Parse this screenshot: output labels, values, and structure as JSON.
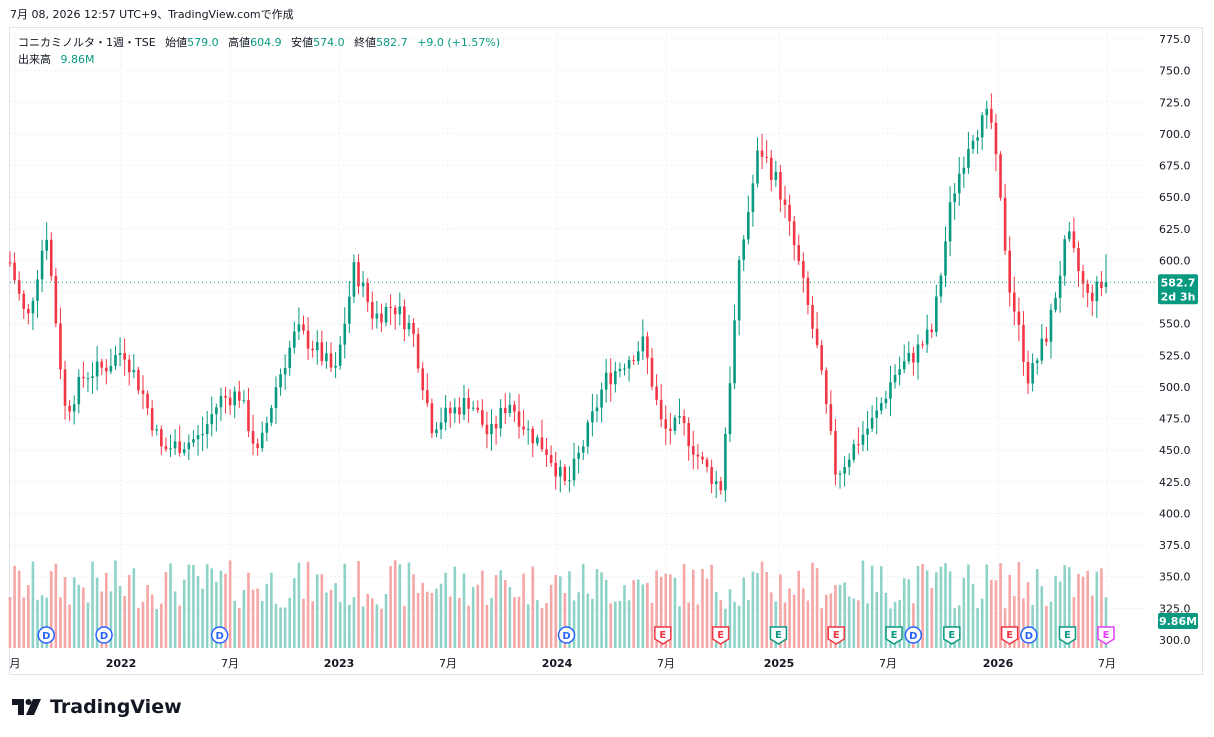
{
  "header": {
    "timestamp": "7月 08, 2026 12:57 UTC+9、TradingView.comで作成"
  },
  "legend": {
    "symbol": "コニカミノルタ・1週・TSE",
    "open_label": "始値",
    "open": "579.0",
    "high_label": "高値",
    "high": "604.9",
    "low_label": "安値",
    "low": "574.0",
    "close_label": "終値",
    "close": "582.7",
    "change": "+9.0 (+1.57%)",
    "volume_label": "出来高",
    "volume": "9.86M"
  },
  "price_badge": {
    "price": "582.7",
    "countdown": "2d 3h"
  },
  "volume_badge": "9.86M",
  "brand": "TradingView",
  "colors": {
    "up": "#089981",
    "down": "#f23645",
    "up_volume": "#8fd3c8",
    "down_volume": "#f5a6a6",
    "grid": "#eef0f4"
  },
  "chart_data": {
    "type": "candlestick",
    "symbol": "コニカミノルタ",
    "interval": "1週",
    "exchange": "TSE",
    "y_axis_ticks": [
      "775.0",
      "750.0",
      "725.0",
      "700.0",
      "675.0",
      "650.0",
      "625.0",
      "600.0",
      "575.0",
      "550.0",
      "525.0",
      "500.0",
      "475.0",
      "450.0",
      "425.0",
      "400.0",
      "375.0",
      "350.0",
      "325.0",
      "300.0"
    ],
    "ylim": [
      300,
      775
    ],
    "x_axis_labels": [
      "月",
      "2022",
      "7月",
      "2023",
      "7月",
      "2024",
      "7月",
      "2025",
      "7月",
      "2026",
      "7月"
    ],
    "last": {
      "open": 579.0,
      "high": 604.9,
      "low": 574.0,
      "close": 582.7,
      "change": 9.0,
      "change_pct": 1.57,
      "volume": "9.86M"
    },
    "close_path_approx": [
      {
        "date": "2021-10",
        "close": 605
      },
      {
        "date": "2021-11",
        "close": 550
      },
      {
        "date": "2021-12",
        "close": 625
      },
      {
        "date": "2022-01",
        "close": 480
      },
      {
        "date": "2022-02",
        "close": 510
      },
      {
        "date": "2022-03",
        "close": 515
      },
      {
        "date": "2022-04",
        "close": 530
      },
      {
        "date": "2022-05",
        "close": 495
      },
      {
        "date": "2022-06",
        "close": 450
      },
      {
        "date": "2022-07",
        "close": 455
      },
      {
        "date": "2022-08",
        "close": 460
      },
      {
        "date": "2022-09",
        "close": 490
      },
      {
        "date": "2022-10",
        "close": 495
      },
      {
        "date": "2022-11",
        "close": 445
      },
      {
        "date": "2022-12",
        "close": 505
      },
      {
        "date": "2023-01",
        "close": 545
      },
      {
        "date": "2023-02",
        "close": 530
      },
      {
        "date": "2023-03",
        "close": 510
      },
      {
        "date": "2023-04",
        "close": 595
      },
      {
        "date": "2023-05",
        "close": 555
      },
      {
        "date": "2023-06",
        "close": 565
      },
      {
        "date": "2023-07",
        "close": 545
      },
      {
        "date": "2023-08",
        "close": 470
      },
      {
        "date": "2023-09",
        "close": 480
      },
      {
        "date": "2023-10",
        "close": 490
      },
      {
        "date": "2023-11",
        "close": 460
      },
      {
        "date": "2023-12",
        "close": 490
      },
      {
        "date": "2024-01",
        "close": 465
      },
      {
        "date": "2024-02",
        "close": 450
      },
      {
        "date": "2024-03",
        "close": 420
      },
      {
        "date": "2024-04",
        "close": 460
      },
      {
        "date": "2024-05",
        "close": 505
      },
      {
        "date": "2024-06",
        "close": 520
      },
      {
        "date": "2024-07",
        "close": 535
      },
      {
        "date": "2024-08",
        "close": 465
      },
      {
        "date": "2024-09",
        "close": 470
      },
      {
        "date": "2024-10",
        "close": 440
      },
      {
        "date": "2024-11",
        "close": 420
      },
      {
        "date": "2024-12",
        "close": 600
      },
      {
        "date": "2025-01",
        "close": 690
      },
      {
        "date": "2025-02",
        "close": 660
      },
      {
        "date": "2025-03",
        "close": 600
      },
      {
        "date": "2025-04",
        "close": 530
      },
      {
        "date": "2025-05",
        "close": 430
      },
      {
        "date": "2025-06",
        "close": 455
      },
      {
        "date": "2025-07",
        "close": 475
      },
      {
        "date": "2025-08",
        "close": 510
      },
      {
        "date": "2025-09",
        "close": 525
      },
      {
        "date": "2025-10",
        "close": 545
      },
      {
        "date": "2025-11",
        "close": 650
      },
      {
        "date": "2025-12",
        "close": 700
      },
      {
        "date": "2026-01",
        "close": 715
      },
      {
        "date": "2026-02",
        "close": 580
      },
      {
        "date": "2026-03",
        "close": 505
      },
      {
        "date": "2026-04",
        "close": 545
      },
      {
        "date": "2026-05",
        "close": 620
      },
      {
        "date": "2026-06",
        "close": 570
      },
      {
        "date": "2026-07",
        "close": 582.7
      }
    ],
    "events": [
      {
        "type": "D",
        "date": "2021-12"
      },
      {
        "type": "D",
        "date": "2022-03"
      },
      {
        "type": "D",
        "date": "2022-09"
      },
      {
        "type": "D",
        "date": "2024-03"
      },
      {
        "type": "E",
        "date": "2024-08",
        "result": "miss"
      },
      {
        "type": "E",
        "date": "2024-11",
        "result": "miss"
      },
      {
        "type": "E",
        "date": "2025-02",
        "result": "beat"
      },
      {
        "type": "E",
        "date": "2025-05",
        "result": "miss"
      },
      {
        "type": "E",
        "date": "2025-08",
        "result": "beat"
      },
      {
        "type": "D",
        "date": "2025-09"
      },
      {
        "type": "E",
        "date": "2025-11",
        "result": "beat"
      },
      {
        "type": "E",
        "date": "2026-02",
        "result": "miss"
      },
      {
        "type": "D",
        "date": "2026-03"
      },
      {
        "type": "E",
        "date": "2026-05",
        "result": "beat"
      },
      {
        "type": "E",
        "date": "2026-07",
        "result": "upcoming"
      }
    ]
  }
}
